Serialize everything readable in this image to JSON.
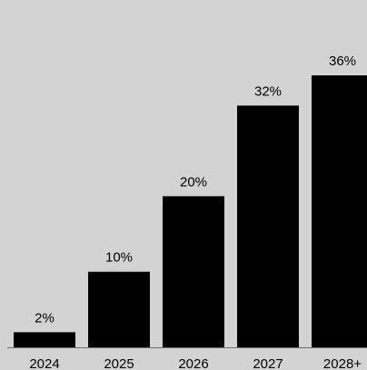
{
  "chart_data": {
    "type": "bar",
    "categories": [
      "2024",
      "2025",
      "2026",
      "2027",
      "2028+"
    ],
    "values": [
      2,
      10,
      20,
      32,
      36
    ],
    "data_labels": [
      "2%",
      "10%",
      "20%",
      "32%",
      "36%"
    ],
    "ylim": [
      0,
      40
    ],
    "grid": false,
    "legend": "none",
    "colors": {
      "bar": "#000000",
      "background": "#d3d3d3"
    }
  }
}
